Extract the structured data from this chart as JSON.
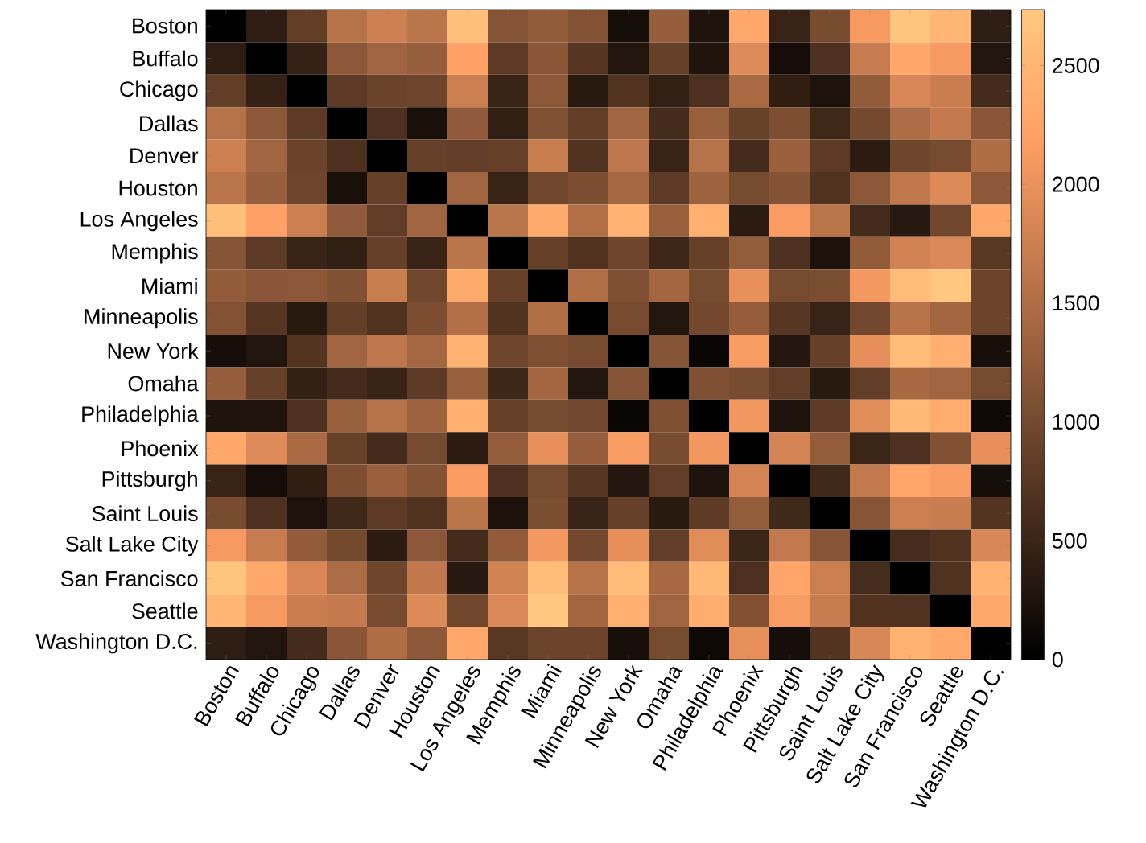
{
  "chart_data": {
    "type": "heatmap",
    "categories": [
      "Boston",
      "Buffalo",
      "Chicago",
      "Dallas",
      "Denver",
      "Houston",
      "Los Angeles",
      "Memphis",
      "Miami",
      "Minneapolis",
      "New York",
      "Omaha",
      "Philadelphia",
      "Phoenix",
      "Pittsburgh",
      "Saint Louis",
      "Salt Lake City",
      "San Francisco",
      "Seattle",
      "Washington D.C."
    ],
    "y_categories": [
      "Boston",
      "Buffalo",
      "Chicago",
      "Dallas",
      "Denver",
      "Houston",
      "Los Angeles",
      "Memphis",
      "Miami",
      "Minneapolis",
      "New York",
      "Omaha",
      "Philadelphia",
      "Phoenix",
      "Pittsburgh",
      "Saint Louis",
      "Salt Lake City",
      "San Francisco",
      "Seattle",
      "Washington D.C."
    ],
    "cells": [
      [
        0,
        400,
        850,
        1550,
        1760,
        1605,
        2605,
        1140,
        1255,
        1125,
        190,
        1280,
        270,
        2300,
        485,
        1040,
        2100,
        2700,
        2490,
        395
      ],
      [
        400,
        0,
        455,
        1200,
        1370,
        1290,
        2200,
        800,
        1180,
        735,
        290,
        880,
        280,
        1910,
        185,
        660,
        1700,
        2300,
        2120,
        290
      ],
      [
        850,
        455,
        0,
        800,
        920,
        940,
        1745,
        480,
        1190,
        355,
        710,
        435,
        665,
        1440,
        410,
        260,
        1250,
        1860,
        1735,
        595
      ],
      [
        1550,
        1200,
        800,
        0,
        660,
        225,
        1240,
        420,
        1110,
        860,
        1370,
        585,
        1300,
        890,
        1070,
        550,
        1000,
        1480,
        1680,
        1185
      ],
      [
        1760,
        1370,
        920,
        660,
        0,
        880,
        830,
        880,
        1725,
        680,
        1630,
        485,
        1565,
        585,
        1320,
        795,
        370,
        950,
        1020,
        1495
      ],
      [
        1605,
        1290,
        940,
        225,
        880,
        0,
        1375,
        485,
        965,
        1060,
        1420,
        800,
        1345,
        1015,
        1135,
        680,
        1200,
        1645,
        1890,
        1220
      ],
      [
        2605,
        2200,
        1745,
        1240,
        830,
        1375,
        0,
        1600,
        2340,
        1525,
        2450,
        1315,
        2400,
        370,
        2135,
        1590,
        580,
        345,
        960,
        2300
      ],
      [
        1140,
        800,
        480,
        420,
        880,
        485,
        1600,
        0,
        870,
        700,
        955,
        530,
        880,
        1260,
        660,
        240,
        1250,
        1800,
        1870,
        765
      ],
      [
        1255,
        1180,
        1190,
        1110,
        1725,
        965,
        2340,
        870,
        0,
        1510,
        1090,
        1400,
        1015,
        1980,
        1010,
        1065,
        2090,
        2585,
        2735,
        925
      ],
      [
        1125,
        735,
        355,
        860,
        680,
        1060,
        1525,
        700,
        1510,
        0,
        1020,
        290,
        985,
        1280,
        745,
        465,
        990,
        1585,
        1395,
        935
      ],
      [
        190,
        290,
        710,
        1370,
        1630,
        1420,
        2450,
        955,
        1090,
        1020,
        0,
        1145,
        80,
        2140,
        315,
        875,
        1970,
        2570,
        2410,
        205
      ],
      [
        1280,
        880,
        435,
        585,
        485,
        800,
        1315,
        530,
        1400,
        290,
        1145,
        0,
        1090,
        1035,
        835,
        355,
        835,
        1430,
        1370,
        1015
      ],
      [
        270,
        280,
        665,
        1300,
        1565,
        1345,
        2400,
        880,
        1015,
        985,
        80,
        1090,
        0,
        2080,
        260,
        810,
        1925,
        2520,
        2380,
        125
      ],
      [
        2300,
        1910,
        1440,
        890,
        585,
        1015,
        370,
        1260,
        1980,
        1280,
        2140,
        1035,
        2080,
        0,
        1815,
        1260,
        505,
        650,
        1115,
        1980
      ],
      [
        485,
        185,
        410,
        1070,
        1320,
        1135,
        2135,
        660,
        1010,
        745,
        315,
        835,
        260,
        1815,
        0,
        560,
        1665,
        2260,
        2140,
        190
      ],
      [
        1040,
        660,
        260,
        550,
        795,
        680,
        1590,
        240,
        1065,
        465,
        875,
        355,
        810,
        1260,
        560,
        0,
        1160,
        1745,
        1720,
        715
      ],
      [
        2100,
        1700,
        1250,
        1000,
        370,
        1200,
        580,
        1250,
        2090,
        990,
        1970,
        835,
        1925,
        505,
        1665,
        1160,
        0,
        600,
        700,
        1850
      ],
      [
        2700,
        2300,
        1860,
        1480,
        950,
        1645,
        345,
        1800,
        2585,
        1585,
        2570,
        1430,
        2520,
        650,
        2260,
        1745,
        600,
        0,
        680,
        2440
      ],
      [
        2490,
        2120,
        1735,
        1680,
        1020,
        1890,
        960,
        1870,
        2735,
        1395,
        2410,
        1370,
        2380,
        1115,
        2140,
        1720,
        700,
        680,
        0,
        2330
      ],
      [
        395,
        290,
        595,
        1185,
        1495,
        1220,
        2300,
        765,
        925,
        935,
        205,
        1015,
        125,
        1980,
        190,
        715,
        1850,
        2440,
        2330,
        0
      ]
    ],
    "clim": [
      0,
      2735
    ],
    "cticks": [
      0,
      500,
      1000,
      1500,
      2000,
      2500
    ]
  }
}
